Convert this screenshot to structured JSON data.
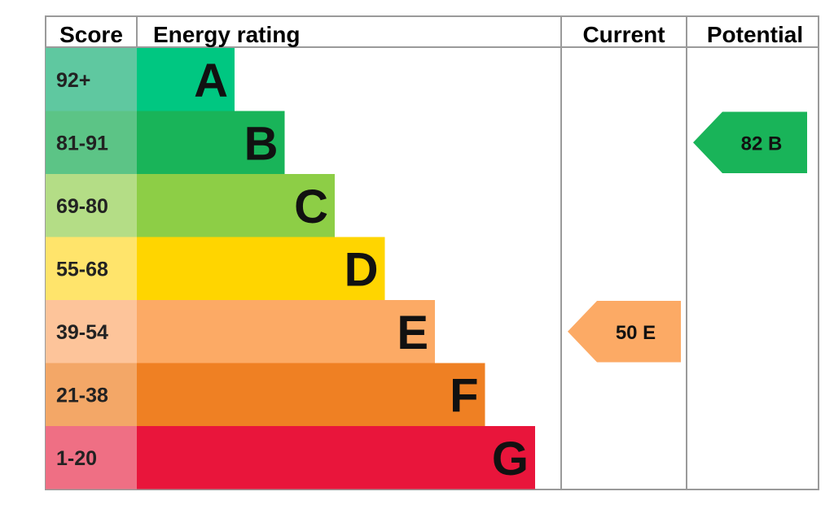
{
  "chart_data": {
    "type": "bar",
    "headers": {
      "score": "Score",
      "rating": "Energy rating",
      "current": "Current",
      "potential": "Potential"
    },
    "bands": [
      {
        "score": "92+",
        "letter": "A",
        "color": "#00c781",
        "tint": "#5fc8a0"
      },
      {
        "score": "81-91",
        "letter": "B",
        "color": "#19b459",
        "tint": "#5cc486"
      },
      {
        "score": "69-80",
        "letter": "C",
        "color": "#8dce46",
        "tint": "#b4dd86"
      },
      {
        "score": "55-68",
        "letter": "D",
        "color": "#ffd500",
        "tint": "#ffe46b"
      },
      {
        "score": "39-54",
        "letter": "E",
        "color": "#fcaa65",
        "tint": "#fdc49a"
      },
      {
        "score": "21-38",
        "letter": "F",
        "color": "#ef8023",
        "tint": "#f3a767"
      },
      {
        "score": "1-20",
        "letter": "G",
        "color": "#e9153b",
        "tint": "#ef6f84"
      }
    ],
    "current": {
      "value": 50,
      "letter": "E",
      "label": "50  E",
      "color": "#fcaa65"
    },
    "potential": {
      "value": 82,
      "letter": "B",
      "label": "82  B",
      "color": "#19b459"
    }
  }
}
